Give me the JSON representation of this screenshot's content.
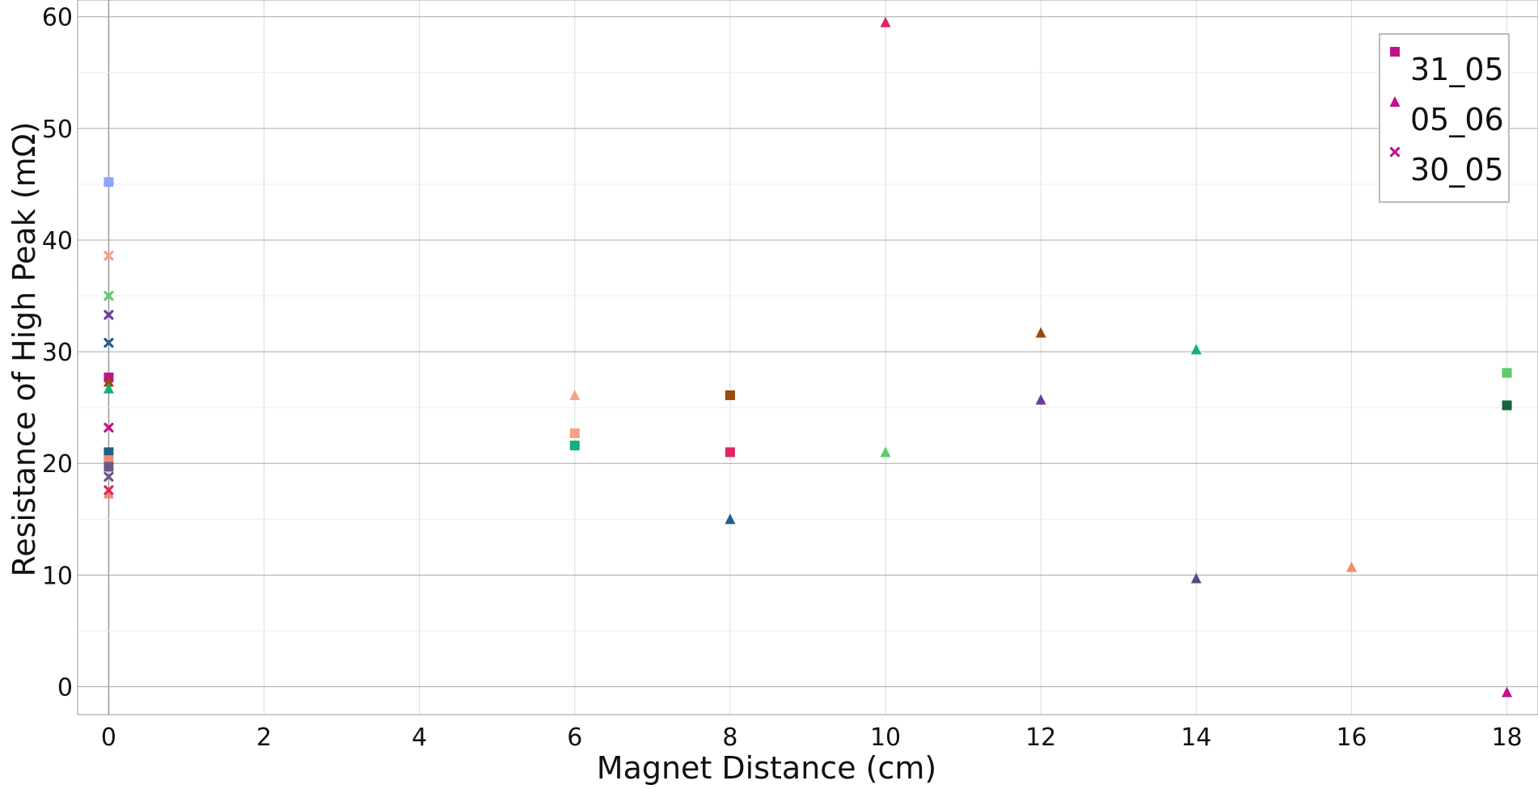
{
  "chart_data": {
    "type": "scatter",
    "title": "",
    "xlabel": "Magnet Distance (cm)",
    "ylabel": "Resistance of High Peak (mΩ)",
    "xlim": [
      -0.4,
      18.4
    ],
    "ylim": [
      -2.5,
      61.5
    ],
    "xticks": [
      0,
      2,
      4,
      6,
      8,
      10,
      12,
      14,
      16,
      18
    ],
    "yticks": [
      0,
      10,
      20,
      30,
      40,
      50,
      60
    ],
    "grid": true,
    "legend_position": "top-right",
    "legend": [
      {
        "label": "31_05",
        "marker": "square",
        "color": "#c0128f"
      },
      {
        "label": "05_06",
        "marker": "triangle",
        "color": "#c0128f"
      },
      {
        "label": "30_05",
        "marker": "x",
        "color": "#c0128f"
      }
    ],
    "series": [
      {
        "marker": "square",
        "points": [
          {
            "x": 0,
            "y": 45.2,
            "color": "#8fa3ff"
          },
          {
            "x": 0,
            "y": 27.7,
            "color": "#c0128f"
          },
          {
            "x": 0,
            "y": 21.0,
            "color": "#1f5f8b"
          },
          {
            "x": 0,
            "y": 20.3,
            "color": "#f08c6b"
          },
          {
            "x": 0,
            "y": 19.7,
            "color": "#6a5a8c"
          },
          {
            "x": 6,
            "y": 22.7,
            "color": "#f5a18c"
          },
          {
            "x": 6,
            "y": 21.6,
            "color": "#12b07a"
          },
          {
            "x": 8,
            "y": 26.1,
            "color": "#9a4a0c"
          },
          {
            "x": 8,
            "y": 21.0,
            "color": "#e0245e"
          },
          {
            "x": 18,
            "y": 28.1,
            "color": "#5ccc6a"
          },
          {
            "x": 18,
            "y": 25.2,
            "color": "#11643e"
          }
        ]
      },
      {
        "marker": "triangle",
        "points": [
          {
            "x": 0,
            "y": 27.3,
            "color": "#9a4a0c"
          },
          {
            "x": 0,
            "y": 26.7,
            "color": "#12b07a"
          },
          {
            "x": 0,
            "y": 17.3,
            "color": "#f08c6b"
          },
          {
            "x": 6,
            "y": 26.1,
            "color": "#f5a18c"
          },
          {
            "x": 8,
            "y": 15.0,
            "color": "#1f5f8b"
          },
          {
            "x": 10,
            "y": 59.5,
            "color": "#e0245e"
          },
          {
            "x": 10,
            "y": 21.0,
            "color": "#5ccc6a"
          },
          {
            "x": 12,
            "y": 31.7,
            "color": "#9a4a0c"
          },
          {
            "x": 12,
            "y": 25.7,
            "color": "#6a3d9a"
          },
          {
            "x": 14,
            "y": 30.2,
            "color": "#12b07a"
          },
          {
            "x": 14,
            "y": 9.7,
            "color": "#5a4a8c"
          },
          {
            "x": 16,
            "y": 10.7,
            "color": "#f08c6b"
          },
          {
            "x": 18,
            "y": -0.5,
            "color": "#c0128f"
          }
        ]
      },
      {
        "marker": "x",
        "points": [
          {
            "x": 0,
            "y": 38.6,
            "color": "#f5a18c"
          },
          {
            "x": 0,
            "y": 35.0,
            "color": "#5ccc6a"
          },
          {
            "x": 0,
            "y": 33.3,
            "color": "#6a3d9a"
          },
          {
            "x": 0,
            "y": 30.8,
            "color": "#1f5f8b"
          },
          {
            "x": 0,
            "y": 23.2,
            "color": "#c0128f"
          },
          {
            "x": 0,
            "y": 18.8,
            "color": "#6a5a8c"
          },
          {
            "x": 0,
            "y": 17.6,
            "color": "#e0245e"
          }
        ]
      }
    ]
  }
}
